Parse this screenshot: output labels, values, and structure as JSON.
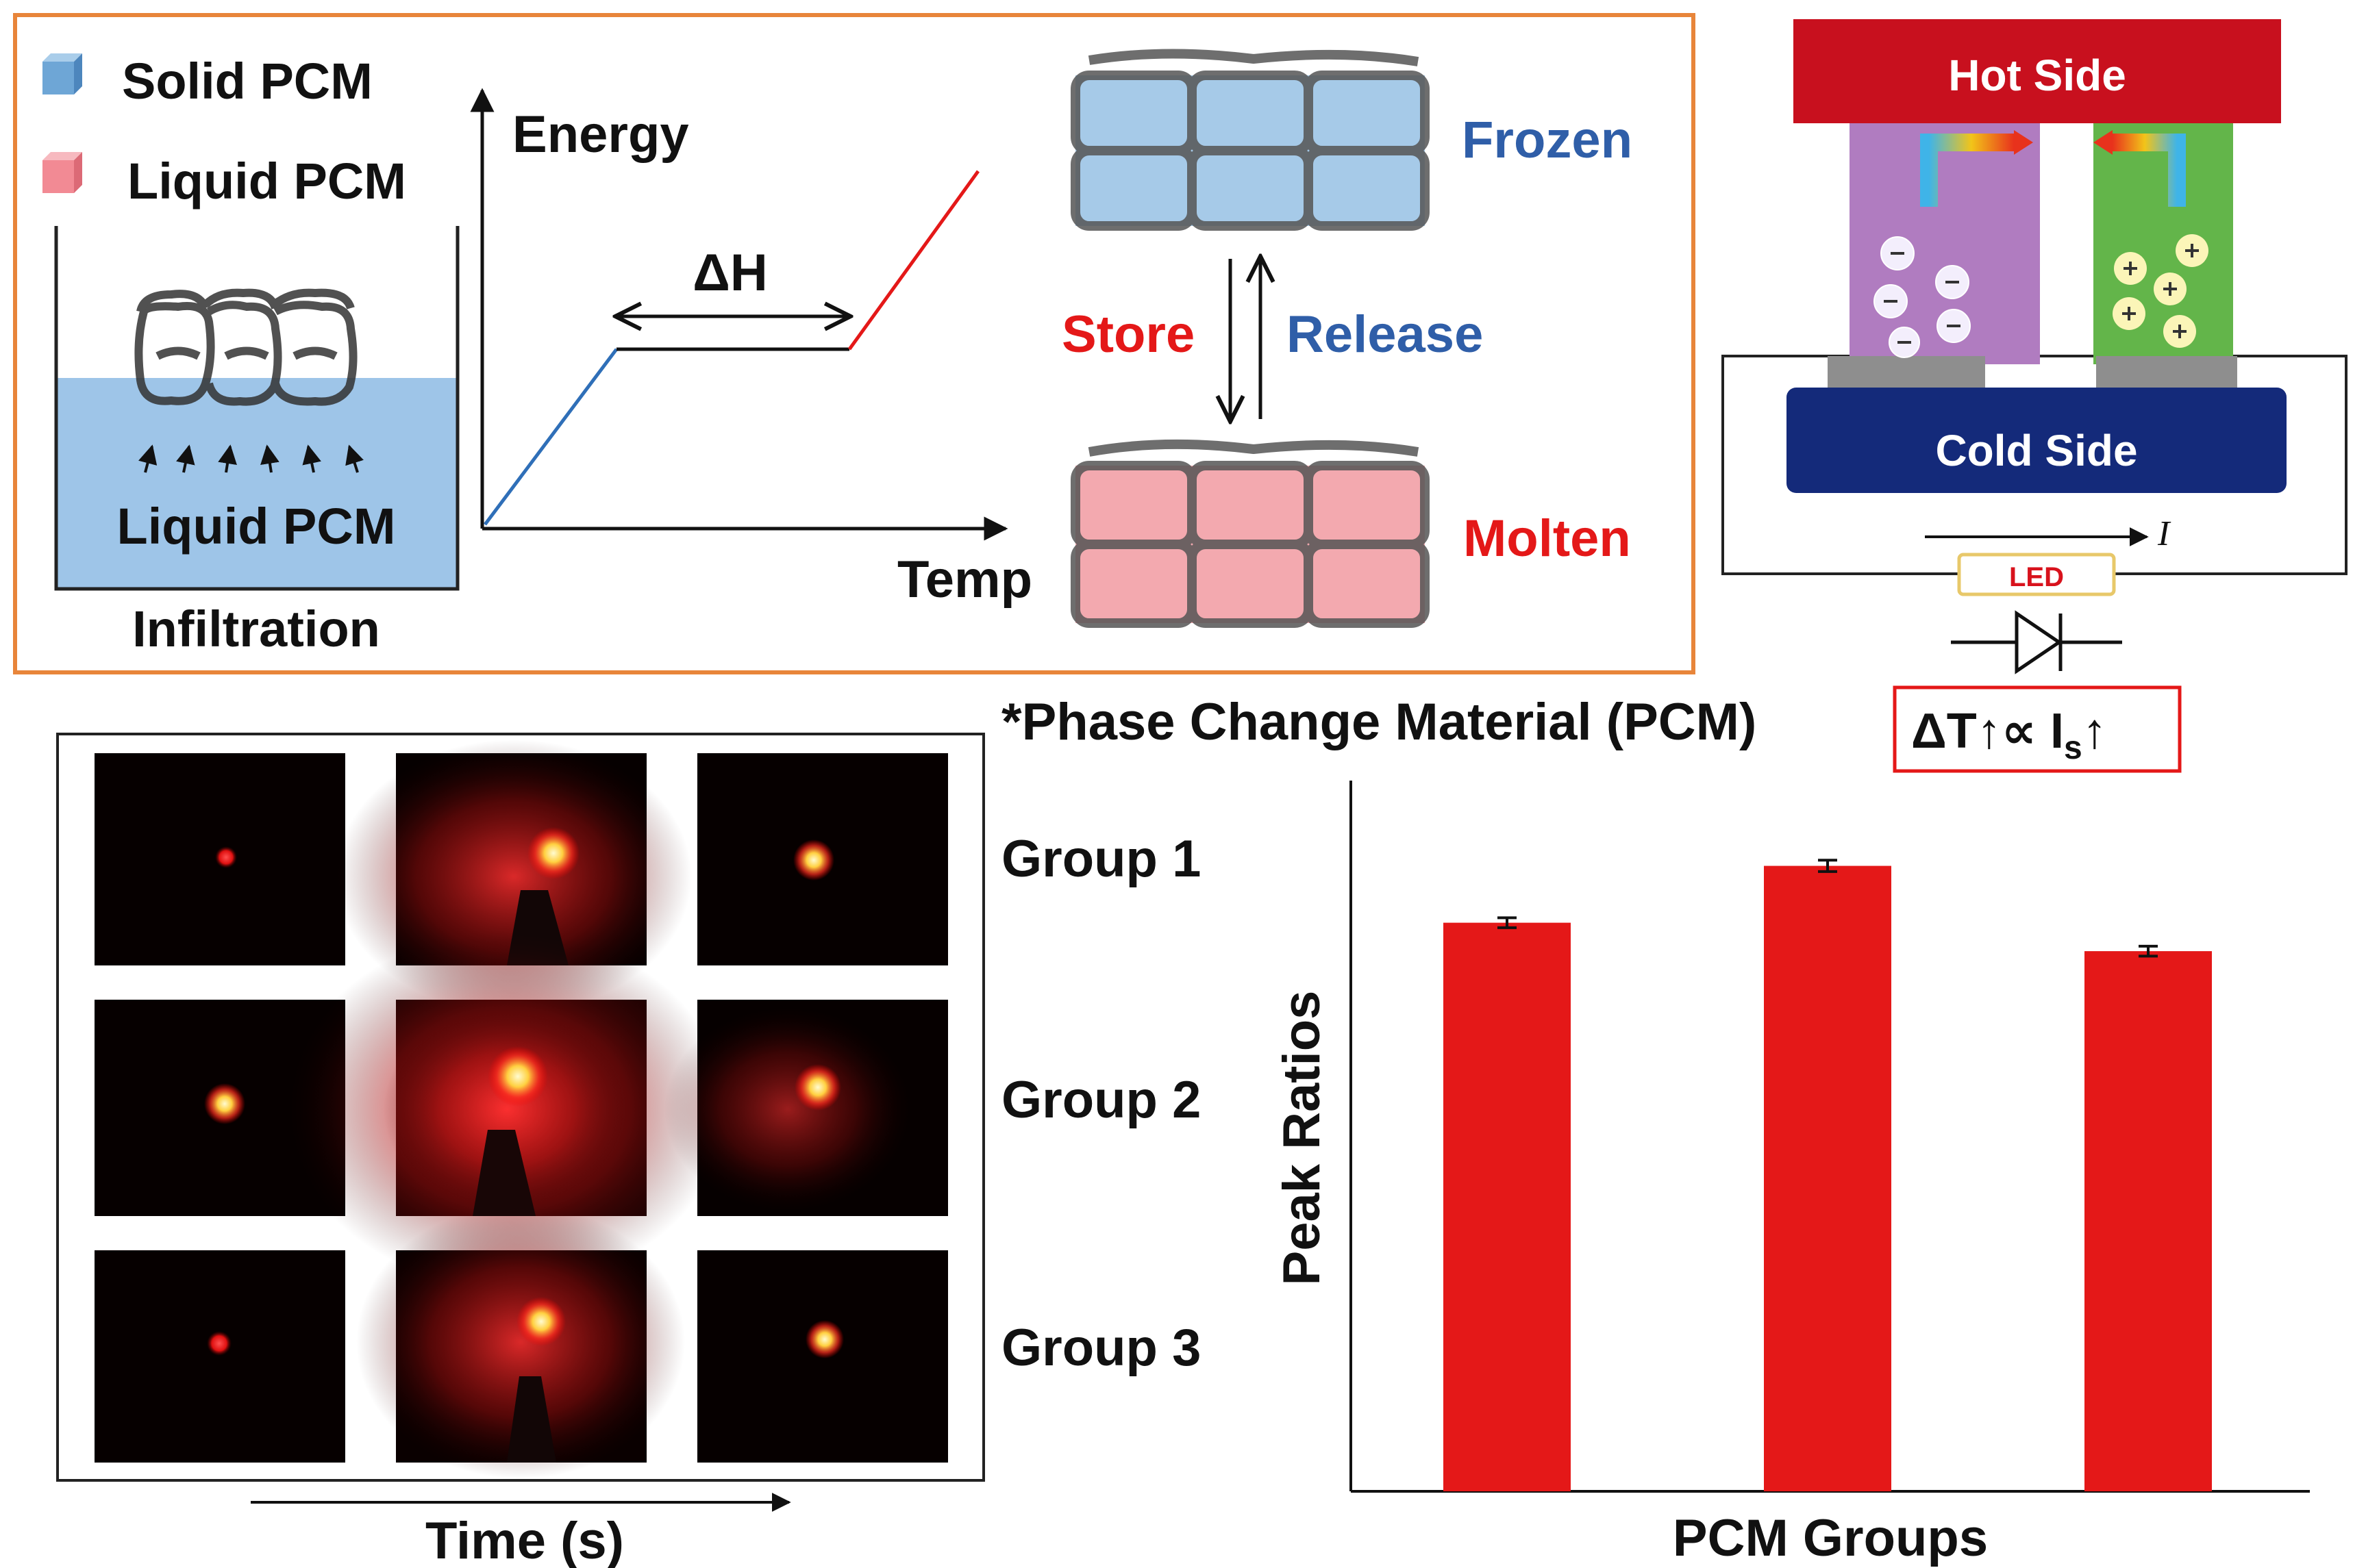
{
  "legend": {
    "solid": "Solid PCM",
    "liquid": "Liquid PCM"
  },
  "infiltration": {
    "bath_label": "Liquid PCM",
    "caption": "Infiltration"
  },
  "energy_plot": {
    "ylabel": "Energy",
    "xlabel": "Temp",
    "latent": "ΔH"
  },
  "cycle": {
    "frozen": "Frozen",
    "molten": "Molten",
    "store": "Store",
    "release": "Release"
  },
  "footnote": "*Phase Change Material (PCM)",
  "teg": {
    "hot": "Hot Side",
    "cold": "Cold Side",
    "current": "I",
    "led": "LED",
    "relation_main": "ΔT↑∝ I",
    "relation_sub": "s",
    "relation_tail": "↑"
  },
  "photos": {
    "groups": [
      "Group 1",
      "Group 2",
      "Group 3"
    ],
    "xlabel": "Time (s)"
  },
  "colors": {
    "accent_red": "#e41818",
    "accent_blue": "#2f5ea8",
    "frame_orange": "#e8853a",
    "hot": "#c8101e",
    "cold": "#142a7a",
    "purple": "#b07cc0",
    "green": "#63b54a"
  },
  "chart_data": {
    "type": "bar",
    "title": "",
    "xlabel": "PCM Groups",
    "ylabel": "Peak Ratios",
    "categories": [
      "",
      "",
      ""
    ],
    "values": [
      0.8,
      0.88,
      0.76
    ],
    "errors": [
      0.007,
      0.008,
      0.007
    ],
    "ylim": [
      0,
      1
    ]
  }
}
